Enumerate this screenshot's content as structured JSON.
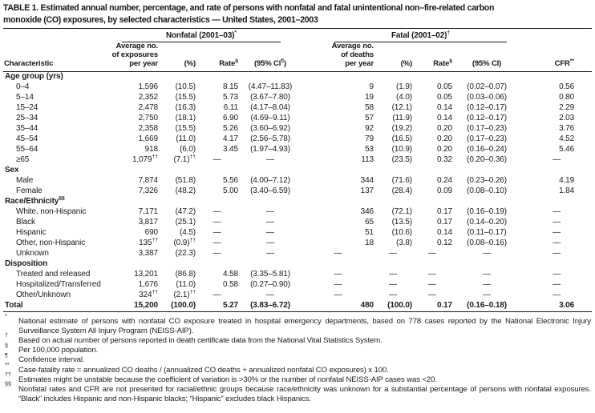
{
  "title_lines": [
    "TABLE 1. Estimated annual number, percentage, and rate of persons with nonfatal and fatal unintentional non–fire-related carbon",
    "monoxide (CO) exposures, by selected characteristics — United States, 2001–2003"
  ],
  "table": {
    "groups": {
      "nonfatal": "Nonfatal (2001–03)*",
      "fatal": "Fatal (2001–02)†"
    },
    "headers": {
      "characteristic": "Characteristic",
      "nf_avg": "Average no.\nof exposures\nper year",
      "nf_pct": "(%)",
      "nf_rate": "Rate§",
      "nf_ci": "(95% CI¶)",
      "f_avg": "Average no.\nof deaths\nper year",
      "f_pct": "(%)",
      "f_rate": "Rate§",
      "f_ci": "(95% CI)",
      "cfr": "CFR**"
    },
    "rows": [
      {
        "type": "section",
        "label": "Age group (yrs)"
      },
      {
        "type": "data",
        "label": "0–4",
        "cells": [
          "1,596",
          "(10.5)",
          "8.15",
          "(4.47–11.83)",
          "9",
          "(1.9)",
          "0.05",
          "(0.02–0.07)",
          "0.56"
        ]
      },
      {
        "type": "data",
        "label": "5–14",
        "cells": [
          "2,352",
          "(15.5)",
          "5.73",
          "(3.67–7.80)",
          "19",
          "(4.0)",
          "0.05",
          "(0.03–0.06)",
          "0.80"
        ]
      },
      {
        "type": "data",
        "label": "15–24",
        "cells": [
          "2,478",
          "(16.3)",
          "6.11",
          "(4.17–8.04)",
          "58",
          "(12.1)",
          "0.14",
          "(0.12–0.17)",
          "2.29"
        ]
      },
      {
        "type": "data",
        "label": "25–34",
        "cells": [
          "2,750",
          "(18.1)",
          "6.90",
          "(4.69–9.11)",
          "57",
          "(11.9)",
          "0.14",
          "(0.12–0.17)",
          "2.03"
        ]
      },
      {
        "type": "data",
        "label": "35–44",
        "cells": [
          "2,358",
          "(15.5)",
          "5.26",
          "(3.60–6.92)",
          "92",
          "(19.2)",
          "0.20",
          "(0.17–0.23)",
          "3.76"
        ]
      },
      {
        "type": "data",
        "label": "45–54",
        "cells": [
          "1,669",
          "(11.0)",
          "4.17",
          "(2.56–5.78)",
          "79",
          "(16.5)",
          "0.20",
          "(0.17–0.23)",
          "4.52"
        ]
      },
      {
        "type": "data",
        "label": "55–64",
        "cells": [
          "918",
          "(6.0)",
          "3.45",
          "(1.97–4.93)",
          "53",
          "(10.9)",
          "0.20",
          "(0.16–0.24)",
          "5.46"
        ]
      },
      {
        "type": "data",
        "label": "≥65",
        "cells": [
          "1,079††",
          "(7.1)††",
          "—",
          "—",
          "113",
          "(23.5)",
          "0.32",
          "(0.20–0.36)",
          "—"
        ]
      },
      {
        "type": "section",
        "label": "Sex"
      },
      {
        "type": "data",
        "label": "Male",
        "cells": [
          "7,874",
          "(51.8)",
          "5.56",
          "(4.00–7.12)",
          "344",
          "(71.6)",
          "0.24",
          "(0.23–0.26)",
          "4.19"
        ]
      },
      {
        "type": "data",
        "label": "Female",
        "cells": [
          "7,326",
          "(48.2)",
          "5.00",
          "(3.40–6.59)",
          "137",
          "(28.4)",
          "0.09",
          "(0.08–0.10)",
          "1.84"
        ]
      },
      {
        "type": "section",
        "label": "Race/Ethnicity§§"
      },
      {
        "type": "data",
        "label": "White, non-Hispanic",
        "cells": [
          "7,171",
          "(47.2)",
          "—",
          "—",
          "346",
          "(72.1)",
          "0.17",
          "(0.16–0.19)",
          "—"
        ]
      },
      {
        "type": "data",
        "label": "Black",
        "cells": [
          "3,817",
          "(25.1)",
          "—",
          "—",
          "65",
          "(13.5)",
          "0.17",
          "(0.14–0.20)",
          "—"
        ]
      },
      {
        "type": "data",
        "label": "Hispanic",
        "cells": [
          "690",
          "(4.5)",
          "—",
          "—",
          "51",
          "(10.6)",
          "0.14",
          "(0.11–0.17)",
          "—"
        ]
      },
      {
        "type": "data",
        "label": "Other, non-Hispanic",
        "cells": [
          "135††",
          "(0.9)††",
          "—",
          "—",
          "18",
          "(3.8)",
          "0.12",
          "(0.08–0.16)",
          "—"
        ]
      },
      {
        "type": "data",
        "label": "Unknown",
        "cells": [
          "3,387",
          "(22.3)",
          "—",
          "—",
          "—",
          "—",
          "—",
          "—",
          "—"
        ]
      },
      {
        "type": "section",
        "label": "Disposition"
      },
      {
        "type": "data",
        "label": "Treated and released",
        "cells": [
          "13,201",
          "(86.8)",
          "4.58",
          "(3.35–5.81)",
          "—",
          "—",
          "—",
          "—",
          "—"
        ]
      },
      {
        "type": "data",
        "label": "Hospitalized/Transferred",
        "cells": [
          "1,676",
          "(11.0)",
          "0.58",
          "(0.27–0.90)",
          "—",
          "—",
          "—",
          "—",
          "—"
        ]
      },
      {
        "type": "data",
        "label": "Other/Unknown",
        "cells": [
          "324††",
          "(2.1)††",
          "—",
          "—",
          "—",
          "—",
          "—",
          "—",
          "—"
        ]
      },
      {
        "type": "total",
        "label": "Total",
        "cells": [
          "15,200",
          "(100.0)",
          "5.27",
          "(3.83–6.72)",
          "480",
          "(100.0)",
          "0.17",
          "(0.16–0.18)",
          "3.06"
        ]
      }
    ]
  },
  "footnotes": [
    {
      "marker": "*",
      "text": "National estimate of persons with nonfatal CO exposure treated in hospital emergency departments, based on 778 cases reported by the National Electronic Injury Surveillance System All Injury Program (NEISS-AIP)."
    },
    {
      "marker": "†",
      "text": "Based on actual number of persons reported in death certificate data from the National Vital Statistics System."
    },
    {
      "marker": "§",
      "text": "Per 100,000 population."
    },
    {
      "marker": "¶",
      "text": "Confidence interval."
    },
    {
      "marker": "**",
      "text": "Case-fatality rate = annualized CO deaths / (annualized CO deaths + annualized nonfatal CO exposures) x 100."
    },
    {
      "marker": "††",
      "text": "Estimates might be unstable because the coefficient of variation is >30% or the number of nonfatal NEISS-AIP cases was <20."
    },
    {
      "marker": "§§",
      "text": "Nonfatal rates and CFR are not presented for racial/ethnic groups because race/ethnicity was unknown for a substantial percentage of persons with nonfatal exposures. “Black” includes Hispanic and non-Hispanic blacks; “Hispanic” excludes black Hispanics."
    }
  ]
}
